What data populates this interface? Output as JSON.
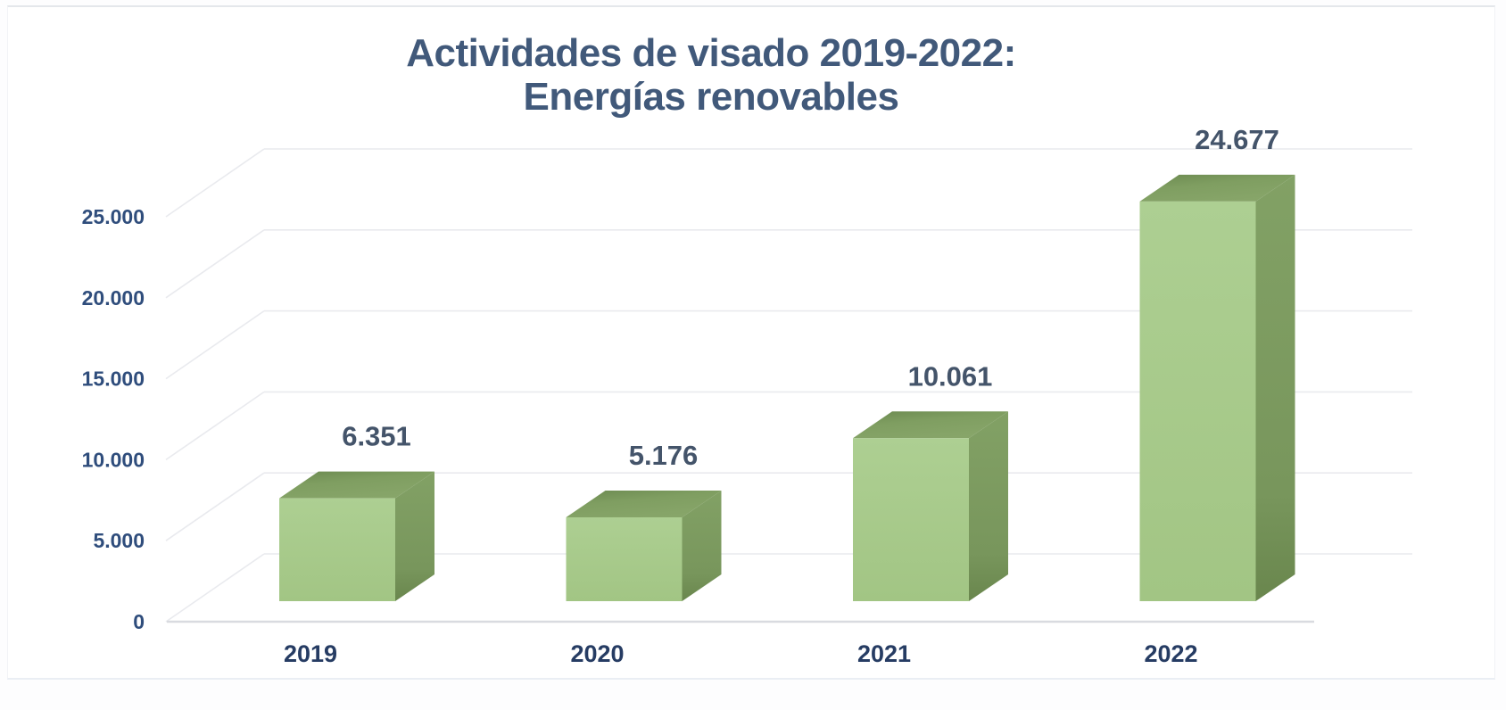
{
  "chart_data": {
    "type": "bar",
    "variant": "3d-column",
    "title": "Actividades de visado 2019-2022: Energías renovables",
    "title_lines": [
      "Actividades de visado 2019-2022:",
      "Energías renovables"
    ],
    "series_name": "Energías renovables",
    "categories": [
      "2019",
      "2020",
      "2021",
      "2022"
    ],
    "values": [
      6351,
      5176,
      10061,
      24677
    ],
    "value_labels": [
      "6.351",
      "5.176",
      "10.061",
      "24.677"
    ],
    "xlabel": "",
    "ylabel": "",
    "ylim": [
      0,
      25000
    ],
    "y_ticks": [
      0,
      5000,
      10000,
      15000,
      20000,
      25000
    ],
    "y_tick_labels": [
      "0",
      "5.000",
      "10.000",
      "15.000",
      "20.000",
      "25.000"
    ],
    "grid": true,
    "legend_position": "none",
    "data_labels": "above-bars",
    "colors": {
      "bar_front": "#a6c98b",
      "bar_front_light": "#adcf92",
      "bar_top": "#7f9e61",
      "bar_top_dark": "#6b8950",
      "bar_side": "#81a064",
      "bar_side_dark": "#69864d",
      "title_text": "#41597a",
      "data_label_text": "#44546a",
      "y_axis_text": "#2f4d7c",
      "x_axis_text": "#263c63",
      "gridline": "#e9eaee",
      "axis_line": "#d9dbe0",
      "card_background": "#ffffff",
      "page_background": "#fdfdfe",
      "card_border": "#e4e7eb"
    }
  }
}
